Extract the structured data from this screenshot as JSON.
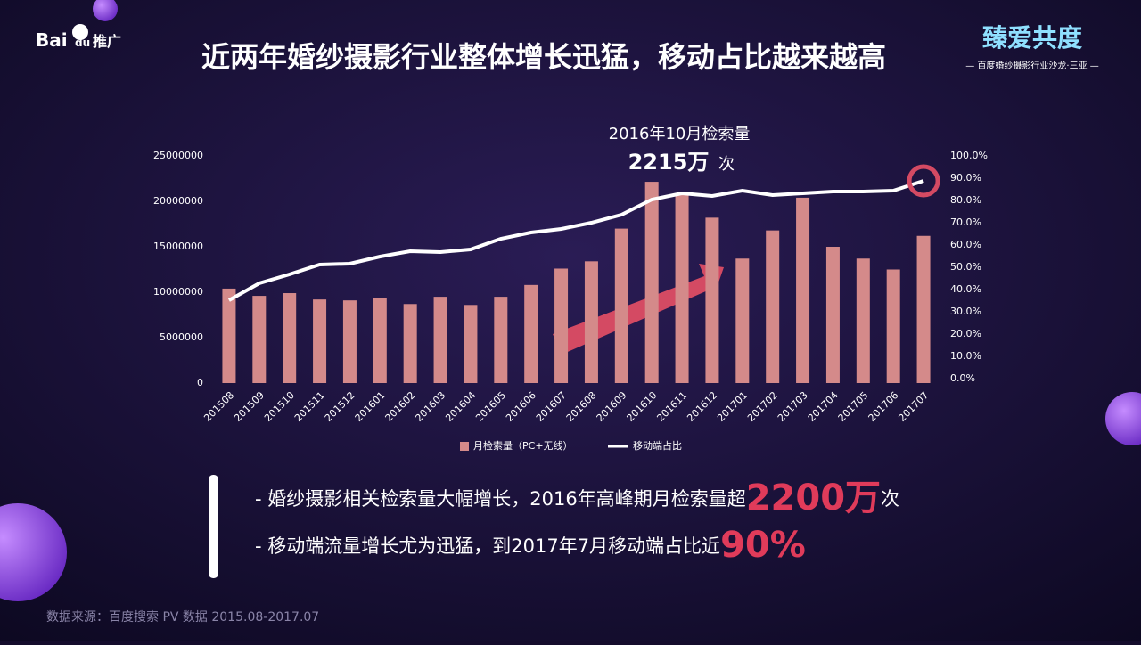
{
  "logo": {
    "brand": "Bai",
    "mark": "du",
    "product": "推广"
  },
  "event": {
    "title": "臻爱共度",
    "subtitle": "— 百度婚纱摄影行业沙龙·三亚 —"
  },
  "chart_data": {
    "type": "bar-line",
    "title": "近两年婚纱摄影行业整体增长迅猛，移动占比越来越高",
    "annotation": {
      "line1": "2016年10月检索量",
      "value": "2215万",
      "unit": "次"
    },
    "categories": [
      "201508",
      "201509",
      "201510",
      "201511",
      "201512",
      "201601",
      "201602",
      "201603",
      "201604",
      "201605",
      "201606",
      "201607",
      "201608",
      "201609",
      "201610",
      "201611",
      "201612",
      "201701",
      "201702",
      "201703",
      "201704",
      "201705",
      "201706",
      "201707"
    ],
    "series": [
      {
        "name": "月检索量（PC+无线）",
        "type": "bar",
        "color": "#d48a8a",
        "values": [
          10400000,
          9600000,
          9900000,
          9200000,
          9100000,
          9400000,
          8700000,
          9500000,
          8600000,
          9500000,
          10800000,
          12600000,
          13400000,
          17000000,
          22150000,
          20900000,
          18200000,
          13700000,
          16800000,
          20400000,
          15000000,
          13700000,
          12500000,
          16200000
        ]
      },
      {
        "name": "移动端占比",
        "type": "line",
        "axis": "y2",
        "color": "#ffffff",
        "values": [
          35.2,
          42.8,
          46.8,
          51.2,
          51.6,
          54.8,
          57.2,
          56.8,
          58,
          62.8,
          65.6,
          67.2,
          70,
          73.6,
          80.4,
          83.2,
          82,
          84.4,
          82.4,
          83.2,
          84,
          84,
          84.4,
          88.8
        ]
      }
    ],
    "ylim": [
      0,
      25000000
    ],
    "yticks": [
      0,
      5000000,
      10000000,
      15000000,
      20000000,
      25000000
    ],
    "y2lim": [
      0,
      100
    ],
    "y2ticks": [
      {
        "value": 0,
        "label": "0.0%"
      },
      {
        "value": 10,
        "label": "10.0%"
      },
      {
        "value": 20,
        "label": "20.0%"
      },
      {
        "value": 30,
        "label": "30.0%"
      },
      {
        "value": 40,
        "label": "40.0%"
      },
      {
        "value": 50,
        "label": "50.0%"
      },
      {
        "value": 60,
        "label": "60.0%"
      },
      {
        "value": 70,
        "label": "70.0%"
      },
      {
        "value": 80,
        "label": "80.0%"
      },
      {
        "value": 90,
        "label": "90.0%"
      },
      {
        "value": 100,
        "label": "100.0%"
      }
    ]
  },
  "bullets": [
    {
      "text": "- 婚纱摄影相关检索量大幅增长，2016年高峰期月检索量超",
      "highlight": "2200万",
      "suffix": "次"
    },
    {
      "text": "- 移动端流量增长尤为迅猛，到2017年7月移动端占比近",
      "highlight": "90%"
    }
  ],
  "source": "数据来源：百度搜索 PV 数据 2015.08-2017.07"
}
